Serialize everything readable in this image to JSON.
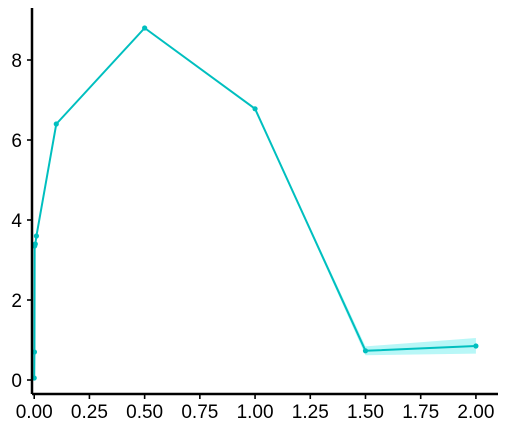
{
  "chart_data": {
    "type": "line",
    "title": "",
    "xlabel": "",
    "ylabel": "",
    "xlim": [
      -0.01,
      2.1
    ],
    "ylim": [
      -0.35,
      9.3
    ],
    "x_ticks": [
      0,
      0.25,
      0.5,
      0.75,
      1.0,
      1.25,
      1.5,
      1.75,
      2.0
    ],
    "x_tick_labels": [
      "0.00",
      "0.25",
      "0.50",
      "0.75",
      "1.00",
      "1.25",
      "1.50",
      "1.75",
      "2.00"
    ],
    "y_ticks": [
      0,
      2,
      4,
      6,
      8
    ],
    "y_tick_labels": [
      "0",
      "2",
      "4",
      "6",
      "8"
    ],
    "grid": false,
    "legend": "none",
    "series": [
      {
        "color": "#00bfbf",
        "band_color": "#b8f7f7",
        "x": [
          0,
          0.001,
          0.002,
          0.005,
          0.01,
          0.1,
          0.5,
          1.0,
          1.5,
          2.0
        ],
        "y": [
          0.05,
          0.7,
          3.35,
          3.4,
          3.6,
          6.4,
          8.8,
          6.78,
          0.73,
          0.85
        ],
        "y_low": [
          0.05,
          0.7,
          3.35,
          3.4,
          3.6,
          6.4,
          8.8,
          6.78,
          0.62,
          0.66
        ],
        "y_high": [
          0.05,
          0.7,
          3.35,
          3.4,
          3.6,
          6.4,
          8.8,
          6.78,
          0.84,
          1.05
        ]
      }
    ]
  }
}
